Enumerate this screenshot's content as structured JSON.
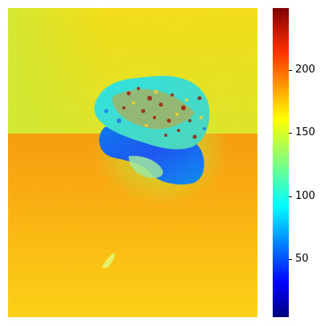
{
  "colorbar": {
    "ticks": [
      "200",
      "150",
      "100",
      "50"
    ],
    "colormap": "jet",
    "colors": [
      "#00007f",
      "#0000ff",
      "#00ffff",
      "#7fff7f",
      "#ffff00",
      "#ff7f00",
      "#ff0000",
      "#7f0000"
    ]
  }
}
